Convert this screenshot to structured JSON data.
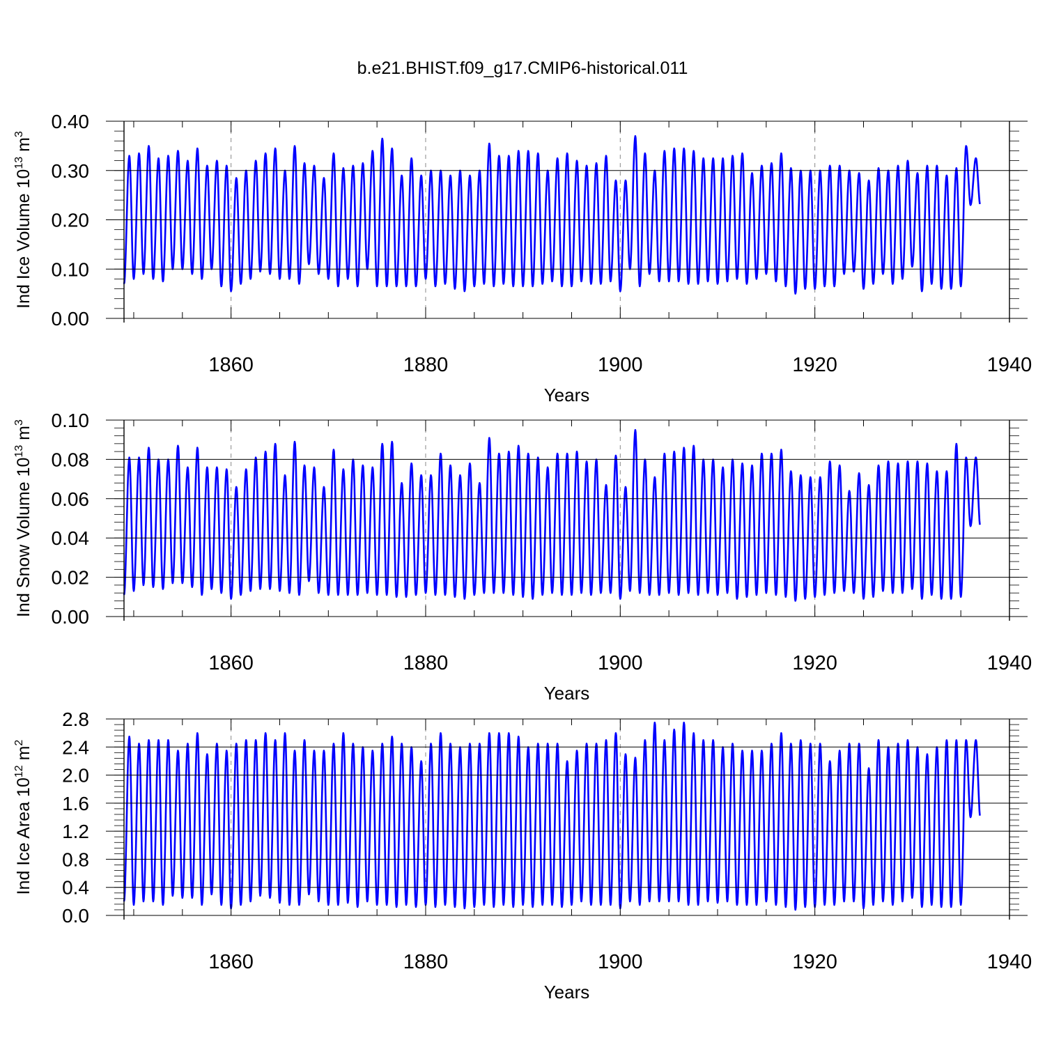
{
  "title": "b.e21.BHIST.f09_g17.CMIP6-historical.011",
  "colors": {
    "series": "#0000ff",
    "axis": "#000000",
    "grid": "#888888"
  },
  "chart_data": [
    {
      "type": "line",
      "ylabel": "Ind Ice Volume 10",
      "ylabel_exp": "13",
      "ylabel_unit": " m",
      "ylabel_unit_exp": "3",
      "xlabel": "Years",
      "xlim": [
        1849,
        1940
      ],
      "ylim": [
        0.0,
        0.4
      ],
      "yticks": [
        "0.00",
        "0.10",
        "0.20",
        "0.30",
        "0.40"
      ],
      "xticks": [
        "1860",
        "1880",
        "1900",
        "1920",
        "1940"
      ],
      "grid": "vertical dashed at major x ticks",
      "series": [
        {
          "x_start": 1849,
          "step": "1 year",
          "annual_max": [
            0.33,
            0.335,
            0.35,
            0.325,
            0.33,
            0.34,
            0.32,
            0.345,
            0.31,
            0.32,
            0.31,
            0.285,
            0.3,
            0.32,
            0.335,
            0.345,
            0.3,
            0.35,
            0.315,
            0.31,
            0.285,
            0.335,
            0.305,
            0.31,
            0.315,
            0.34,
            0.365,
            0.345,
            0.29,
            0.325,
            0.29,
            0.3,
            0.3,
            0.29,
            0.3,
            0.29,
            0.3,
            0.355,
            0.33,
            0.33,
            0.34,
            0.34,
            0.335,
            0.3,
            0.325,
            0.335,
            0.32,
            0.31,
            0.315,
            0.33,
            0.28,
            0.28,
            0.37,
            0.335,
            0.3,
            0.34,
            0.345,
            0.345,
            0.34,
            0.325,
            0.325,
            0.325,
            0.33,
            0.335,
            0.295,
            0.31,
            0.315,
            0.335,
            0.305,
            0.3,
            0.3,
            0.3,
            0.31,
            0.31,
            0.3,
            0.295,
            0.28,
            0.305,
            0.3,
            0.31,
            0.32,
            0.295,
            0.31,
            0.31,
            0.29,
            0.305,
            0.35,
            0.325
          ],
          "annual_min": [
            0.07,
            0.08,
            0.09,
            0.08,
            0.075,
            0.1,
            0.1,
            0.09,
            0.08,
            0.1,
            0.065,
            0.055,
            0.07,
            0.08,
            0.095,
            0.09,
            0.08,
            0.08,
            0.07,
            0.11,
            0.09,
            0.08,
            0.065,
            0.08,
            0.065,
            0.1,
            0.065,
            0.065,
            0.065,
            0.065,
            0.065,
            0.08,
            0.065,
            0.07,
            0.06,
            0.055,
            0.065,
            0.07,
            0.065,
            0.07,
            0.065,
            0.065,
            0.065,
            0.07,
            0.075,
            0.065,
            0.065,
            0.075,
            0.07,
            0.07,
            0.075,
            0.055,
            0.1,
            0.065,
            0.09,
            0.075,
            0.075,
            0.075,
            0.07,
            0.07,
            0.075,
            0.07,
            0.075,
            0.08,
            0.07,
            0.08,
            0.09,
            0.075,
            0.065,
            0.05,
            0.06,
            0.06,
            0.065,
            0.065,
            0.09,
            0.095,
            0.06,
            0.07,
            0.09,
            0.07,
            0.08,
            0.105,
            0.055,
            0.07,
            0.06,
            0.06,
            0.065,
            0.23
          ]
        }
      ]
    },
    {
      "type": "line",
      "ylabel": "Ind Snow Volume 10",
      "ylabel_exp": "13",
      "ylabel_unit": " m",
      "ylabel_unit_exp": "3",
      "xlabel": "Years",
      "xlim": [
        1849,
        1940
      ],
      "ylim": [
        0.0,
        0.1
      ],
      "yticks": [
        "0.00",
        "0.02",
        "0.04",
        "0.06",
        "0.08",
        "0.10"
      ],
      "xticks": [
        "1860",
        "1880",
        "1900",
        "1920",
        "1940"
      ],
      "grid": "vertical dashed at major x ticks",
      "series": [
        {
          "x_start": 1849,
          "step": "1 year",
          "annual_max": [
            0.081,
            0.081,
            0.086,
            0.08,
            0.08,
            0.087,
            0.076,
            0.086,
            0.076,
            0.076,
            0.075,
            0.066,
            0.075,
            0.081,
            0.084,
            0.088,
            0.072,
            0.089,
            0.077,
            0.076,
            0.066,
            0.085,
            0.075,
            0.08,
            0.077,
            0.076,
            0.088,
            0.089,
            0.068,
            0.078,
            0.072,
            0.072,
            0.083,
            0.077,
            0.072,
            0.078,
            0.068,
            0.091,
            0.083,
            0.084,
            0.087,
            0.083,
            0.081,
            0.076,
            0.083,
            0.083,
            0.084,
            0.079,
            0.08,
            0.067,
            0.082,
            0.066,
            0.095,
            0.08,
            0.071,
            0.083,
            0.084,
            0.086,
            0.087,
            0.08,
            0.08,
            0.076,
            0.08,
            0.078,
            0.077,
            0.083,
            0.083,
            0.085,
            0.074,
            0.072,
            0.071,
            0.071,
            0.079,
            0.077,
            0.064,
            0.073,
            0.067,
            0.077,
            0.079,
            0.078,
            0.079,
            0.079,
            0.078,
            0.074,
            0.074,
            0.088,
            0.081,
            0.081
          ],
          "annual_min": [
            0.011,
            0.013,
            0.016,
            0.015,
            0.014,
            0.017,
            0.017,
            0.015,
            0.011,
            0.014,
            0.012,
            0.009,
            0.011,
            0.013,
            0.014,
            0.014,
            0.013,
            0.012,
            0.011,
            0.018,
            0.012,
            0.011,
            0.011,
            0.011,
            0.011,
            0.012,
            0.011,
            0.011,
            0.01,
            0.01,
            0.011,
            0.012,
            0.011,
            0.011,
            0.01,
            0.009,
            0.011,
            0.012,
            0.012,
            0.012,
            0.011,
            0.01,
            0.009,
            0.011,
            0.012,
            0.011,
            0.011,
            0.012,
            0.011,
            0.012,
            0.012,
            0.009,
            0.013,
            0.012,
            0.011,
            0.011,
            0.012,
            0.011,
            0.012,
            0.011,
            0.012,
            0.011,
            0.012,
            0.009,
            0.01,
            0.011,
            0.012,
            0.011,
            0.01,
            0.008,
            0.009,
            0.01,
            0.011,
            0.012,
            0.013,
            0.012,
            0.009,
            0.01,
            0.013,
            0.012,
            0.012,
            0.014,
            0.009,
            0.011,
            0.009,
            0.009,
            0.01,
            0.046
          ]
        }
      ]
    },
    {
      "type": "line",
      "ylabel": "Ind Ice Area 10",
      "ylabel_exp": "12",
      "ylabel_unit": " m",
      "ylabel_unit_exp": "2",
      "xlabel": "Years",
      "xlim": [
        1849,
        1940
      ],
      "ylim": [
        0.0,
        2.8
      ],
      "yticks": [
        "0.0",
        "0.4",
        "0.8",
        "1.2",
        "1.6",
        "2.0",
        "2.4",
        "2.8"
      ],
      "xticks": [
        "1860",
        "1880",
        "1900",
        "1920",
        "1940"
      ],
      "grid": "vertical dashed at major x ticks",
      "series": [
        {
          "x_start": 1849,
          "step": "1 year",
          "annual_max": [
            2.55,
            2.45,
            2.5,
            2.5,
            2.5,
            2.35,
            2.45,
            2.6,
            2.3,
            2.45,
            2.35,
            2.45,
            2.5,
            2.5,
            2.6,
            2.5,
            2.6,
            2.35,
            2.5,
            2.35,
            2.35,
            2.45,
            2.6,
            2.45,
            2.4,
            2.35,
            2.45,
            2.55,
            2.45,
            2.4,
            2.2,
            2.45,
            2.6,
            2.45,
            2.4,
            2.45,
            2.45,
            2.6,
            2.6,
            2.6,
            2.55,
            2.4,
            2.45,
            2.45,
            2.45,
            2.2,
            2.35,
            2.45,
            2.45,
            2.5,
            2.6,
            2.3,
            2.25,
            2.5,
            2.75,
            2.5,
            2.65,
            2.75,
            2.6,
            2.5,
            2.5,
            2.4,
            2.45,
            2.35,
            2.35,
            2.35,
            2.45,
            2.6,
            2.45,
            2.5,
            2.45,
            2.45,
            2.2,
            2.35,
            2.45,
            2.45,
            2.1,
            2.5,
            2.4,
            2.45,
            2.5,
            2.4,
            2.3,
            2.4,
            2.5,
            2.5,
            2.5,
            2.5
          ],
          "annual_min": [
            0.2,
            0.15,
            0.2,
            0.2,
            0.15,
            0.28,
            0.25,
            0.25,
            0.15,
            0.3,
            0.15,
            0.1,
            0.15,
            0.2,
            0.28,
            0.25,
            0.18,
            0.15,
            0.15,
            0.3,
            0.2,
            0.15,
            0.15,
            0.18,
            0.12,
            0.2,
            0.15,
            0.15,
            0.12,
            0.15,
            0.12,
            0.15,
            0.12,
            0.15,
            0.12,
            0.1,
            0.12,
            0.15,
            0.12,
            0.15,
            0.12,
            0.15,
            0.12,
            0.15,
            0.15,
            0.12,
            0.15,
            0.2,
            0.15,
            0.15,
            0.15,
            0.1,
            0.2,
            0.15,
            0.2,
            0.2,
            0.2,
            0.2,
            0.15,
            0.15,
            0.2,
            0.18,
            0.2,
            0.15,
            0.15,
            0.15,
            0.2,
            0.15,
            0.12,
            0.08,
            0.12,
            0.12,
            0.15,
            0.15,
            0.2,
            0.2,
            0.1,
            0.15,
            0.2,
            0.15,
            0.2,
            0.25,
            0.12,
            0.15,
            0.12,
            0.12,
            0.15,
            1.4
          ]
        }
      ]
    }
  ]
}
